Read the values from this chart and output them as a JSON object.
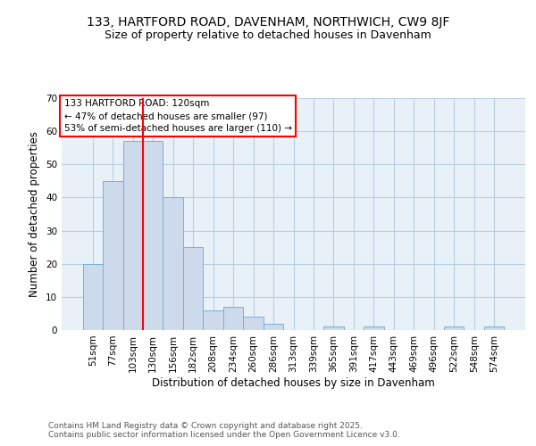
{
  "title_line1": "133, HARTFORD ROAD, DAVENHAM, NORTHWICH, CW9 8JF",
  "title_line2": "Size of property relative to detached houses in Davenham",
  "xlabel": "Distribution of detached houses by size in Davenham",
  "ylabel": "Number of detached properties",
  "bar_labels": [
    "51sqm",
    "77sqm",
    "103sqm",
    "130sqm",
    "156sqm",
    "182sqm",
    "208sqm",
    "234sqm",
    "260sqm",
    "286sqm",
    "313sqm",
    "339sqm",
    "365sqm",
    "391sqm",
    "417sqm",
    "443sqm",
    "469sqm",
    "496sqm",
    "522sqm",
    "548sqm",
    "574sqm"
  ],
  "bar_values": [
    20,
    45,
    57,
    57,
    40,
    25,
    6,
    7,
    4,
    2,
    0,
    0,
    1,
    0,
    1,
    0,
    0,
    0,
    1,
    0,
    1
  ],
  "bar_color": "#cddaeb",
  "bar_edge_color": "#7bafd4",
  "vline_x": 2.5,
  "vline_color": "red",
  "annotation_text": "133 HARTFORD ROAD: 120sqm\n← 47% of detached houses are smaller (97)\n53% of semi-detached houses are larger (110) →",
  "annotation_box_color": "white",
  "annotation_box_edge_color": "red",
  "ylim": [
    0,
    70
  ],
  "yticks": [
    0,
    10,
    20,
    30,
    40,
    50,
    60,
    70
  ],
  "grid_color": "#b8cfe0",
  "background_color": "#e8f0f8",
  "footer_text": "Contains HM Land Registry data © Crown copyright and database right 2025.\nContains public sector information licensed under the Open Government Licence v3.0.",
  "title_fontsize": 10,
  "subtitle_fontsize": 9,
  "axis_label_fontsize": 8.5,
  "tick_fontsize": 7.5,
  "annotation_fontsize": 7.5,
  "footer_fontsize": 6.5
}
